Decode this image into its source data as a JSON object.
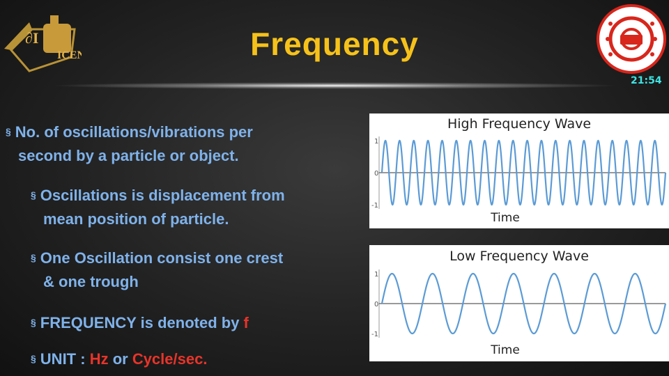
{
  "slide": {
    "title": "Frequency",
    "time": "21:54"
  },
  "bullets": [
    {
      "line1": "No.  of  oscillations/vibrations  per",
      "line2": "second by a particle or object."
    },
    {
      "line1": "Oscillations is displacement from",
      "line2": "mean position  of particle."
    },
    {
      "line1": "One Oscillation consist one crest",
      "line2": "&  one trough"
    },
    {
      "prefix": "FREQUENCY is denoted by ",
      "highlight": "f"
    },
    {
      "prefix": "UNIT : ",
      "h1": "Hz",
      "mid": " or ",
      "h2": "Cycle/sec."
    }
  ],
  "colors": {
    "title": "#f6c21a",
    "text": "#7fb2ea",
    "highlight": "#e8342a",
    "wave": "#5b9bd5"
  },
  "chart_data": [
    {
      "type": "line",
      "title": "High Frequency Wave",
      "xlabel": "Time",
      "yticks": [
        "1",
        "0",
        "-1"
      ],
      "ylim": [
        -1,
        1
      ],
      "function": "sine",
      "cycles": 20
    },
    {
      "type": "line",
      "title": "Low Frequency Wave",
      "xlabel": "Time",
      "yticks": [
        "1",
        "0",
        "-1"
      ],
      "ylim": [
        -1,
        1
      ],
      "function": "sine",
      "cycles": 7
    }
  ]
}
